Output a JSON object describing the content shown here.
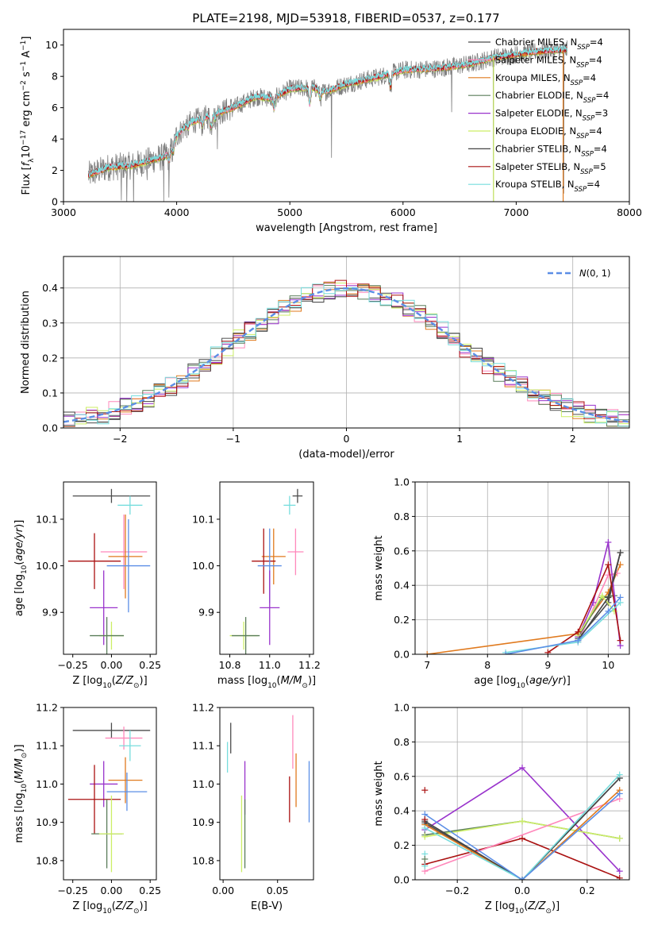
{
  "figure": {
    "title": "PLATE=2198, MJD=53918, FIBERID=0537, z=0.177",
    "colors": {
      "Chabrier MILES": "#4c4c4c",
      "Salpeter MILES": "#ff88bb",
      "Kroupa MILES": "#e07a1e",
      "Chabrier ELODIE": "#5a7d5a",
      "Salpeter ELODIE": "#9933cc",
      "Kroupa ELODIE": "#ccee66",
      "Chabrier STELIB": "#444444",
      "Salpeter STELIB": "#aa1111",
      "Kroupa STELIB": "#77dddd",
      "mean_blue": "#5b8ee6",
      "gray_data": "#808080"
    }
  },
  "chart_data": [
    {
      "id": "spectrum",
      "type": "line",
      "title": "PLATE=2198, MJD=53918, FIBERID=0537, z=0.177",
      "xlabel": "wavelength [Angstrom, rest frame]",
      "ylabel": "Flux [f_λ 10^-17 erg cm^-2 s^-1 A^-1]",
      "xlim": [
        3000,
        8000
      ],
      "ylim": [
        0,
        11
      ],
      "xticks": [
        3000,
        4000,
        5000,
        6000,
        7000,
        8000
      ],
      "yticks": [
        0,
        2,
        4,
        6,
        8,
        10
      ],
      "legend_position": "top-right",
      "legend": [
        {
          "name": "Chabrier MILES, N_SSP=4",
          "main": "Chabrier MILES, N",
          "sub": "SSP",
          "tail": "=4",
          "color": "#4c4c4c"
        },
        {
          "name": "Salpeter MILES, N_SSP=4",
          "main": "Salpeter MILES, N",
          "sub": "SSP",
          "tail": "=4",
          "color": "#ff88bb"
        },
        {
          "name": "Kroupa MILES, N_SSP=4",
          "main": "Kroupa MILES, N",
          "sub": "SSP",
          "tail": "=4",
          "color": "#e07a1e"
        },
        {
          "name": "Chabrier ELODIE, N_SSP=4",
          "main": "Chabrier ELODIE, N",
          "sub": "SSP",
          "tail": "=4",
          "color": "#5a7d5a"
        },
        {
          "name": "Salpeter ELODIE, N_SSP=3",
          "main": "Salpeter ELODIE, N",
          "sub": "SSP",
          "tail": "=3",
          "color": "#9933cc"
        },
        {
          "name": "Kroupa ELODIE, N_SSP=4",
          "main": "Kroupa ELODIE, N",
          "sub": "SSP",
          "tail": "=4",
          "color": "#ccee66"
        },
        {
          "name": "Chabrier STELIB, N_SSP=4",
          "main": "Chabrier STELIB, N",
          "sub": "SSP",
          "tail": "=4",
          "color": "#444444"
        },
        {
          "name": "Salpeter STELIB, N_SSP=5",
          "main": "Salpeter STELIB, N",
          "sub": "SSP",
          "tail": "=5",
          "color": "#aa1111"
        },
        {
          "name": "Kroupa STELIB, N_SSP=4",
          "main": "Kroupa STELIB, N",
          "sub": "SSP",
          "tail": "=4",
          "color": "#77dddd"
        }
      ],
      "continuum_nodes": [
        [
          3220,
          1.7
        ],
        [
          3400,
          2.2
        ],
        [
          3600,
          2.3
        ],
        [
          3700,
          2.5
        ],
        [
          3800,
          2.7
        ],
        [
          3900,
          2.9
        ],
        [
          3950,
          3.4
        ],
        [
          4000,
          4.2
        ],
        [
          4100,
          5.0
        ],
        [
          4300,
          5.5
        ],
        [
          4500,
          6.0
        ],
        [
          4700,
          6.7
        ],
        [
          4860,
          6.6
        ],
        [
          5000,
          7.2
        ],
        [
          5200,
          7.3
        ],
        [
          5300,
          7.0
        ],
        [
          5500,
          7.5
        ],
        [
          5800,
          8.0
        ],
        [
          6000,
          8.4
        ],
        [
          6300,
          8.5
        ],
        [
          6600,
          8.8
        ],
        [
          6800,
          9.2
        ],
        [
          7000,
          9.4
        ],
        [
          7200,
          9.6
        ],
        [
          7450,
          9.7
        ]
      ],
      "absorption_lines": [
        [
          3933,
          0.6
        ],
        [
          3968,
          0.5
        ],
        [
          4101,
          0.3
        ],
        [
          4226,
          0.4
        ],
        [
          4304,
          0.7
        ],
        [
          4340,
          0.3
        ],
        [
          4861,
          0.6
        ],
        [
          5175,
          1.0
        ],
        [
          5270,
          0.5
        ],
        [
          5890,
          0.8
        ]
      ],
      "spike_lines": [
        [
          3510,
          -2.3
        ],
        [
          3560,
          -2.4
        ],
        [
          3620,
          -2.1
        ],
        [
          3740,
          -1.9
        ],
        [
          3885,
          -2.5
        ],
        [
          3930,
          -2.8
        ],
        [
          4360,
          -1.8
        ],
        [
          5368,
          -3.8
        ],
        [
          6430,
          -2.6
        ],
        [
          6800,
          -9.0
        ],
        [
          7420,
          -9.5
        ]
      ]
    },
    {
      "id": "residuals",
      "type": "line",
      "xlabel": "(data-model)/error",
      "ylabel": "Normed distribution",
      "xlim": [
        -2.5,
        2.5
      ],
      "ylim": [
        0,
        0.49
      ],
      "xticks": [
        -2,
        -1,
        0,
        1,
        2
      ],
      "yticks": [
        0.0,
        0.1,
        0.2,
        0.3,
        0.4
      ],
      "grid": true,
      "legend_position": "top-right",
      "legend": [
        {
          "name": "N(0, 1)",
          "color": "#5b8ee6",
          "style": "dashed"
        }
      ],
      "bin_width": 0.1
    },
    {
      "id": "age_vs_Z",
      "type": "scatter",
      "xlabel": "Z [log10(Z/Z⊙)]",
      "ylabel": "age [log10(age/yr)]",
      "xlim": [
        -0.31,
        0.29
      ],
      "ylim": [
        9.81,
        10.18
      ],
      "xticks": [
        -0.25,
        0.0,
        0.25
      ],
      "yticks": [
        9.9,
        10.0,
        10.1
      ],
      "points": [
        {
          "series": "Chabrier MILES",
          "x": 0.0,
          "y": 10.15,
          "xerr": 0.25,
          "yerr": 0.015
        },
        {
          "series": "Kroupa STELIB",
          "x": 0.12,
          "y": 10.13,
          "xerr": 0.08,
          "yerr": 0.02
        },
        {
          "series": "Salpeter MILES",
          "x": 0.08,
          "y": 10.03,
          "xerr": 0.15,
          "yerr": 0.08
        },
        {
          "series": "Kroupa MILES",
          "x": 0.09,
          "y": 10.02,
          "xerr": 0.11,
          "yerr": 0.09
        },
        {
          "series": "Salpeter STELIB",
          "x": -0.11,
          "y": 10.01,
          "xerr": 0.17,
          "yerr": 0.06
        },
        {
          "series": "mean",
          "x": 0.11,
          "y": 10.0,
          "xerr": 0.14,
          "yerr": 0.1
        },
        {
          "series": "Salpeter ELODIE",
          "x": -0.05,
          "y": 9.91,
          "xerr": 0.09,
          "yerr": 0.08
        },
        {
          "series": "Kroupa ELODIE",
          "x": 0.0,
          "y": 9.85,
          "xerr": 0.08,
          "yerr": 0.03
        },
        {
          "series": "Chabrier ELODIE",
          "x": -0.03,
          "y": 9.85,
          "xerr": 0.11,
          "yerr": 0.04
        }
      ]
    },
    {
      "id": "age_vs_mass",
      "type": "scatter",
      "xlabel": "mass [log10(M/M⊙)]",
      "ylabel": "",
      "xlim": [
        10.75,
        11.22
      ],
      "ylim": [
        9.81,
        10.18
      ],
      "xticks": [
        10.8,
        11.0,
        11.2
      ],
      "yticks": [
        9.9,
        10.0,
        10.1
      ],
      "points": [
        {
          "series": "Chabrier MILES",
          "x": 11.14,
          "y": 10.15,
          "xerr": 0.025,
          "yerr": 0.015
        },
        {
          "series": "Kroupa STELIB",
          "x": 11.1,
          "y": 10.13,
          "xerr": 0.03,
          "yerr": 0.02
        },
        {
          "series": "Salpeter MILES",
          "x": 11.13,
          "y": 10.03,
          "xerr": 0.04,
          "yerr": 0.05
        },
        {
          "series": "Kroupa MILES",
          "x": 11.02,
          "y": 10.02,
          "xerr": 0.06,
          "yerr": 0.06
        },
        {
          "series": "Salpeter STELIB",
          "x": 10.97,
          "y": 10.01,
          "xerr": 0.06,
          "yerr": 0.07
        },
        {
          "series": "mean",
          "x": 11.0,
          "y": 10.0,
          "xerr": 0.06,
          "yerr": 0.08
        },
        {
          "series": "Salpeter ELODIE",
          "x": 11.0,
          "y": 9.91,
          "xerr": 0.05,
          "yerr": 0.08
        },
        {
          "series": "Kroupa ELODIE",
          "x": 10.87,
          "y": 9.85,
          "xerr": 0.07,
          "yerr": 0.03
        },
        {
          "series": "Chabrier ELODIE",
          "x": 10.88,
          "y": 9.85,
          "xerr": 0.07,
          "yerr": 0.04
        }
      ]
    },
    {
      "id": "mass_weight_vs_age",
      "type": "line",
      "xlabel": "age [log10(age/yr)]",
      "ylabel": "mass weight",
      "xlim": [
        6.8,
        10.35
      ],
      "ylim": [
        0,
        1.0
      ],
      "xticks": [
        7,
        8,
        9,
        10
      ],
      "yticks": [
        0.0,
        0.2,
        0.4,
        0.6,
        0.8,
        1.0
      ],
      "grid": true,
      "series": [
        {
          "name": "Kroupa MILES",
          "x": [
            7.0,
            9.5,
            10.0,
            10.2
          ],
          "y": [
            0.0,
            0.12,
            0.36,
            0.52
          ]
        },
        {
          "name": "Salpeter MILES",
          "x": [
            9.5,
            10.0,
            10.15
          ],
          "y": [
            0.07,
            0.46,
            0.47
          ]
        },
        {
          "name": "Chabrier MILES",
          "x": [
            9.5,
            10.0,
            10.2
          ],
          "y": [
            0.09,
            0.3,
            0.59
          ]
        },
        {
          "name": "Chabrier ELODIE",
          "x": [
            9.5,
            9.9,
            10.1
          ],
          "y": [
            0.1,
            0.33,
            0.34
          ]
        },
        {
          "name": "Salpeter ELODIE",
          "x": [
            9.5,
            9.75,
            10.0,
            10.2
          ],
          "y": [
            0.1,
            0.3,
            0.65,
            0.05
          ]
        },
        {
          "name": "Kroupa ELODIE",
          "x": [
            9.5,
            9.9,
            10.1
          ],
          "y": [
            0.11,
            0.34,
            0.25
          ]
        },
        {
          "name": "Chabrier STELIB",
          "x": [
            9.5,
            10.0,
            10.2
          ],
          "y": [
            0.08,
            0.33,
            0.59
          ]
        },
        {
          "name": "Salpeter STELIB",
          "x": [
            9.0,
            9.5,
            10.0,
            10.2
          ],
          "y": [
            0.01,
            0.13,
            0.52,
            0.08
          ]
        },
        {
          "name": "Kroupa STELIB",
          "x": [
            8.3,
            9.5,
            10.2
          ],
          "y": [
            0.01,
            0.07,
            0.3
          ]
        },
        {
          "name": "mean",
          "x": [
            8.3,
            9.5,
            10.0,
            10.2
          ],
          "y": [
            0.0,
            0.08,
            0.25,
            0.33
          ]
        }
      ]
    },
    {
      "id": "mass_vs_Z",
      "type": "scatter",
      "xlabel": "Z [log10(Z/Z⊙)]",
      "ylabel": "mass [log10(M/M⊙)]",
      "xlim": [
        -0.31,
        0.29
      ],
      "ylim": [
        10.75,
        11.2
      ],
      "xticks": [
        -0.25,
        0.0,
        0.25
      ],
      "yticks": [
        10.8,
        10.9,
        11.0,
        11.1,
        11.2
      ],
      "points": [
        {
          "series": "Chabrier MILES",
          "x": 0.0,
          "y": 11.14,
          "xerr": 0.25,
          "yerr": 0.02
        },
        {
          "series": "Salpeter MILES",
          "x": 0.08,
          "y": 11.12,
          "xerr": 0.12,
          "yerr": 0.03
        },
        {
          "series": "Kroupa STELIB",
          "x": 0.12,
          "y": 11.1,
          "xerr": 0.07,
          "yerr": 0.04
        },
        {
          "series": "Kroupa MILES",
          "x": 0.09,
          "y": 11.01,
          "xerr": 0.11,
          "yerr": 0.06
        },
        {
          "series": "Salpeter ELODIE",
          "x": -0.05,
          "y": 11.0,
          "xerr": 0.09,
          "yerr": 0.06
        },
        {
          "series": "mean",
          "x": 0.1,
          "y": 10.98,
          "xerr": 0.13,
          "yerr": 0.05
        },
        {
          "series": "Salpeter STELIB",
          "x": -0.11,
          "y": 10.96,
          "xerr": 0.17,
          "yerr": 0.09
        },
        {
          "series": "Chabrier ELODIE",
          "x": -0.03,
          "y": 10.87,
          "xerr": 0.1,
          "yerr": 0.09
        },
        {
          "series": "Kroupa ELODIE",
          "x": 0.0,
          "y": 10.87,
          "xerr": 0.08,
          "yerr": 0.1
        }
      ]
    },
    {
      "id": "mass_vs_ebv",
      "type": "scatter",
      "xlabel": "E(B-V)",
      "ylabel": "",
      "xlim": [
        -0.003,
        0.083
      ],
      "ylim": [
        10.75,
        11.2
      ],
      "xticks": [
        0.0,
        0.05
      ],
      "yticks": [
        10.8,
        10.9,
        11.0,
        11.1,
        11.2
      ],
      "points": [
        {
          "series": "Chabrier MILES",
          "x": 0.007,
          "y": 11.12,
          "xerr": 0.0,
          "yerr": 0.04
        },
        {
          "series": "Kroupa STELIB",
          "x": 0.004,
          "y": 11.07,
          "xerr": 0.0,
          "yerr": 0.04
        },
        {
          "series": "Salpeter ELODIE",
          "x": 0.02,
          "y": 10.99,
          "xerr": 0.0,
          "yerr": 0.07
        },
        {
          "series": "Chabrier ELODIE",
          "x": 0.02,
          "y": 10.87,
          "xerr": 0.0,
          "yerr": 0.09
        },
        {
          "series": "Kroupa ELODIE",
          "x": 0.017,
          "y": 10.87,
          "xerr": 0.0,
          "yerr": 0.1
        },
        {
          "series": "Salpeter MILES",
          "x": 0.064,
          "y": 11.11,
          "xerr": 0.0,
          "yerr": 0.07
        },
        {
          "series": "Kroupa MILES",
          "x": 0.067,
          "y": 11.01,
          "xerr": 0.0,
          "yerr": 0.07
        },
        {
          "series": "Salpeter STELIB",
          "x": 0.061,
          "y": 10.96,
          "xerr": 0.0,
          "yerr": 0.06
        },
        {
          "series": "mean",
          "x": 0.079,
          "y": 10.98,
          "xerr": 0.0,
          "yerr": 0.08
        }
      ]
    },
    {
      "id": "mass_weight_vs_Z",
      "type": "line",
      "xlabel": "Z [log10(Z/Z⊙)]",
      "ylabel": "mass weight",
      "xlim": [
        -0.33,
        0.33
      ],
      "ylim": [
        0,
        1.0
      ],
      "xticks": [
        -0.2,
        0.0,
        0.2
      ],
      "yticks": [
        0.0,
        0.2,
        0.4,
        0.6,
        0.8,
        1.0
      ],
      "grid": true,
      "series": [
        {
          "name": "Salpeter ELODIE",
          "x": [
            -0.3,
            0.0,
            0.3
          ],
          "y": [
            0.29,
            0.65,
            0.05
          ]
        },
        {
          "name": "Chabrier ELODIE",
          "x": [
            -0.3,
            0.0,
            0.3
          ],
          "y": [
            0.26,
            0.34,
            0.24
          ]
        },
        {
          "name": "Kroupa ELODIE",
          "x": [
            -0.3,
            0.0,
            0.3
          ],
          "y": [
            0.25,
            0.34,
            0.24
          ]
        },
        {
          "name": "Salpeter STELIB",
          "x": [
            -0.3,
            0.0,
            0.3
          ],
          "y": [
            0.09,
            0.24,
            0.01
          ]
        },
        {
          "name": "Salpeter MILES",
          "x": [
            -0.3,
            0.3
          ],
          "y": [
            0.05,
            0.47
          ]
        },
        {
          "name": "Chabrier MILES",
          "x": [
            -0.3,
            0.0,
            0.3
          ],
          "y": [
            0.33,
            0.0,
            0.59
          ]
        },
        {
          "name": "Kroupa MILES",
          "x": [
            -0.3,
            0.0,
            0.3
          ],
          "y": [
            0.32,
            0.0,
            0.52
          ]
        },
        {
          "name": "Chabrier STELIB",
          "x": [
            -0.3,
            0.0,
            0.3
          ],
          "y": [
            0.34,
            0.0,
            0.59
          ]
        },
        {
          "name": "Kroupa STELIB",
          "x": [
            -0.3,
            0.0,
            0.3
          ],
          "y": [
            0.3,
            0.0,
            0.61
          ]
        },
        {
          "name": "mean",
          "x": [
            -0.3,
            0.0,
            0.3
          ],
          "y": [
            0.38,
            0.0,
            0.5
          ]
        }
      ],
      "extra_points": [
        {
          "series": "Salpeter STELIB",
          "x": -0.3,
          "y": 0.52
        },
        {
          "series": "Salpeter STELIB",
          "x": -0.3,
          "y": 0.35
        },
        {
          "series": "Kroupa STELIB",
          "x": -0.3,
          "y": 0.15
        },
        {
          "series": "Chabrier ELODIE",
          "x": -0.3,
          "y": 0.12
        },
        {
          "series": "Kroupa STELIB",
          "x": -0.3,
          "y": 0.08
        }
      ]
    }
  ]
}
